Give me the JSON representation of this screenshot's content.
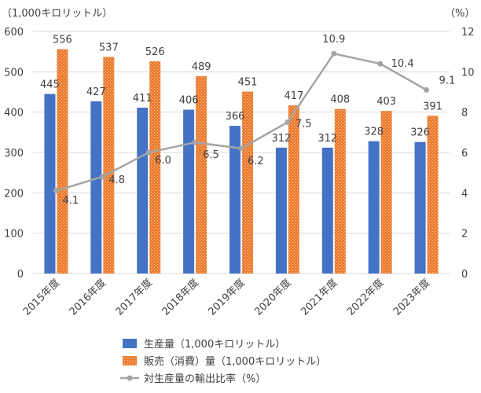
{
  "chart_data": {
    "type": "bar",
    "left_unit": "（1,000キロリットル）",
    "right_unit": "（%）",
    "categories": [
      "2015年度",
      "2016年度",
      "2017年度",
      "2018年度",
      "2019年度",
      "2020年度",
      "2021年度",
      "2022年度",
      "2023年度"
    ],
    "y_left": {
      "min": 0,
      "max": 600,
      "ticks": [
        "0",
        "100",
        "200",
        "300",
        "400",
        "500",
        "600"
      ]
    },
    "y_right": {
      "min": 0,
      "max": 12,
      "ticks": [
        "0",
        "2",
        "4",
        "6",
        "8",
        "10",
        "12"
      ]
    },
    "series": [
      {
        "name": "生産量（1,000キロリットル）",
        "type": "bar",
        "axis": "left",
        "color": "#4472c4",
        "values": [
          445,
          427,
          411,
          406,
          366,
          312,
          312,
          328,
          326
        ],
        "labels": [
          "445",
          "427",
          "411",
          "406",
          "366",
          "312",
          "312",
          "328",
          "326"
        ]
      },
      {
        "name": "販売（消費）量（1,000キロリットル）",
        "type": "bar",
        "axis": "left",
        "color": "#ed7d31",
        "values": [
          556,
          537,
          526,
          489,
          451,
          417,
          408,
          403,
          391
        ],
        "labels": [
          "556",
          "537",
          "526",
          "489",
          "451",
          "417",
          "408",
          "403",
          "391"
        ]
      },
      {
        "name": "対生産量の輸出比率（%）",
        "type": "line",
        "axis": "right",
        "color": "#a5a5a5",
        "values": [
          4.1,
          4.8,
          6.0,
          6.5,
          6.2,
          7.5,
          10.9,
          10.4,
          9.1
        ],
        "labels": [
          "4.1",
          "4.8",
          "6.0",
          "6.5",
          "6.2",
          "7.5",
          "10.9",
          "10.4",
          "9.1"
        ]
      }
    ],
    "legend_position": "bottom"
  }
}
